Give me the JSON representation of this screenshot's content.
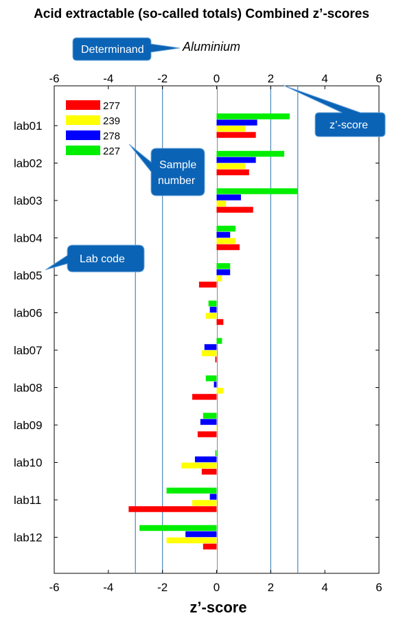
{
  "title": "Acid extractable (so-called totals) Combined z’-scores",
  "determinand": "Aluminium",
  "callouts": {
    "determinand": "Determinand",
    "zscore": "z’-score",
    "sample_line1": "Sample",
    "sample_line2": "number",
    "labcode": "Lab code"
  },
  "colors": {
    "277": "#ff0000",
    "239": "#ffff00",
    "278": "#0000ff",
    "227": "#00ee00",
    "callout": "#0b63b5",
    "vline": "#4a86b8"
  },
  "chart_data": {
    "type": "bar",
    "orientation": "horizontal",
    "title": "Acid extractable (so-called totals) Combined z’-scores",
    "xlabel": "z’-score",
    "ylabel": "",
    "xlim": [
      -6,
      6
    ],
    "xticks": [
      "-6",
      "-4",
      "-2",
      "0",
      "2",
      "4",
      "6"
    ],
    "reference_lines": [
      -3,
      -2,
      2,
      3
    ],
    "legend_position": "top-left",
    "categories": [
      "lab01",
      "lab02",
      "lab03",
      "lab04",
      "lab05",
      "lab06",
      "lab07",
      "lab08",
      "lab09",
      "lab10",
      "lab11",
      "lab12"
    ],
    "series": [
      {
        "name": "277",
        "color": "#ff0000",
        "values": [
          1.45,
          1.2,
          1.35,
          0.85,
          -0.65,
          0.25,
          -0.05,
          -0.9,
          -0.7,
          -0.55,
          -3.25,
          -0.5
        ]
      },
      {
        "name": "239",
        "color": "#ffff00",
        "values": [
          1.05,
          1.05,
          0.35,
          0.7,
          0.2,
          -0.4,
          -0.55,
          0.25,
          0.0,
          -1.3,
          -0.9,
          -1.85
        ]
      },
      {
        "name": "278",
        "color": "#0000ff",
        "values": [
          1.5,
          1.45,
          0.9,
          0.5,
          0.5,
          -0.25,
          -0.45,
          -0.1,
          -0.6,
          -0.8,
          -0.25,
          -1.15
        ]
      },
      {
        "name": "227",
        "color": "#00ee00",
        "values": [
          2.7,
          2.5,
          3.0,
          0.7,
          0.5,
          -0.3,
          0.2,
          -0.4,
          -0.5,
          -0.05,
          -1.85,
          -2.85
        ]
      }
    ]
  }
}
